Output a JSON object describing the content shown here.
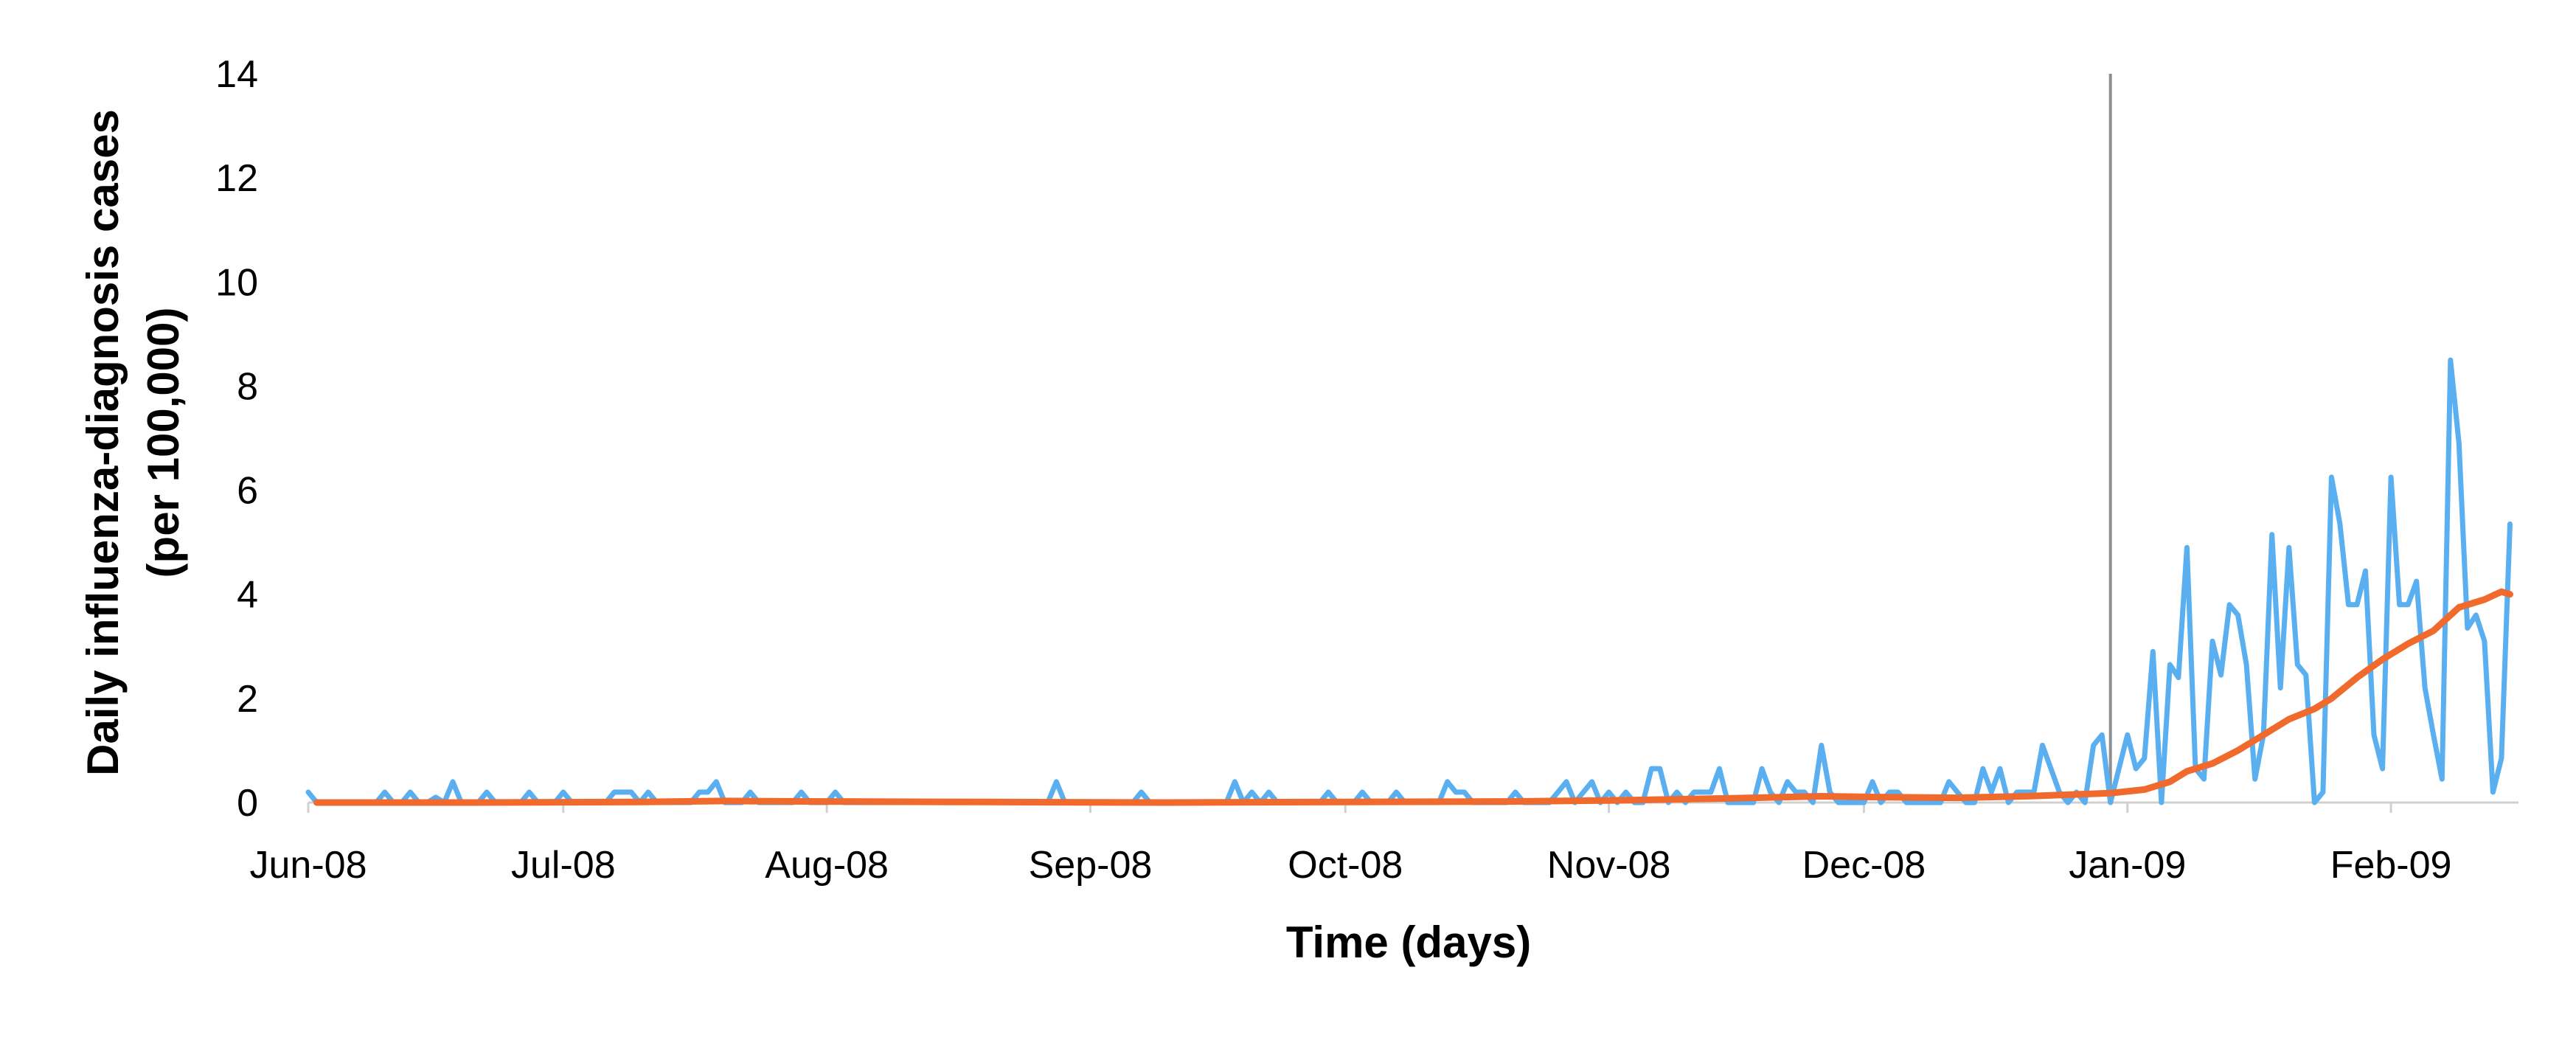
{
  "chart_data": {
    "type": "line",
    "xlabel": "Time (days)",
    "ylabel": [
      "Daily influenza-diagnosis cases",
      "(per 100,000)"
    ],
    "ylim": [
      0,
      14
    ],
    "yticks": [
      0,
      2,
      4,
      6,
      8,
      10,
      12,
      14
    ],
    "x_tick_labels": [
      {
        "date": "2008-06-01",
        "label": "Jun-08"
      },
      {
        "date": "2008-07-01",
        "label": "Jul-08"
      },
      {
        "date": "2008-08-01",
        "label": "Aug-08"
      },
      {
        "date": "2008-09-01",
        "label": "Sep-08"
      },
      {
        "date": "2008-10-01",
        "label": "Oct-08"
      },
      {
        "date": "2008-11-01",
        "label": "Nov-08"
      },
      {
        "date": "2008-12-01",
        "label": "Dec-08"
      },
      {
        "date": "2009-01-01",
        "label": "Jan-09"
      },
      {
        "date": "2009-02-01",
        "label": "Feb-09"
      }
    ],
    "xlim": [
      "2008-06-01",
      "2009-02-16"
    ],
    "grid": false,
    "legend": "none",
    "vertical_marker": {
      "date": "2008-12-30",
      "color": "#8a8f8f"
    },
    "series": [
      {
        "color": "#5aaff0",
        "points": [
          [
            "2008-06-01",
            0.2
          ],
          [
            "2008-06-02",
            0
          ],
          [
            "2008-06-09",
            0
          ],
          [
            "2008-06-10",
            0.2
          ],
          [
            "2008-06-11",
            0
          ],
          [
            "2008-06-12",
            0
          ],
          [
            "2008-06-13",
            0.2
          ],
          [
            "2008-06-14",
            0
          ],
          [
            "2008-06-15",
            0
          ],
          [
            "2008-06-16",
            0.1
          ],
          [
            "2008-06-17",
            0
          ],
          [
            "2008-06-18",
            0.4
          ],
          [
            "2008-06-19",
            0
          ],
          [
            "2008-06-21",
            0
          ],
          [
            "2008-06-22",
            0.2
          ],
          [
            "2008-06-23",
            0
          ],
          [
            "2008-06-26",
            0
          ],
          [
            "2008-06-27",
            0.2
          ],
          [
            "2008-06-28",
            0
          ],
          [
            "2008-06-30",
            0
          ],
          [
            "2008-07-01",
            0.2
          ],
          [
            "2008-07-02",
            0
          ],
          [
            "2008-07-06",
            0
          ],
          [
            "2008-07-07",
            0.2
          ],
          [
            "2008-07-09",
            0.2
          ],
          [
            "2008-07-10",
            0
          ],
          [
            "2008-07-11",
            0.2
          ],
          [
            "2008-07-12",
            0
          ],
          [
            "2008-07-16",
            0
          ],
          [
            "2008-07-17",
            0.2
          ],
          [
            "2008-07-18",
            0.2
          ],
          [
            "2008-07-19",
            0.4
          ],
          [
            "2008-07-20",
            0
          ],
          [
            "2008-07-22",
            0
          ],
          [
            "2008-07-23",
            0.2
          ],
          [
            "2008-07-24",
            0
          ],
          [
            "2008-07-28",
            0
          ],
          [
            "2008-07-29",
            0.2
          ],
          [
            "2008-07-30",
            0
          ],
          [
            "2008-08-01",
            0
          ],
          [
            "2008-08-02",
            0.2
          ],
          [
            "2008-08-03",
            0
          ],
          [
            "2008-08-27",
            0
          ],
          [
            "2008-08-28",
            0.4
          ],
          [
            "2008-08-29",
            0
          ],
          [
            "2008-09-06",
            0
          ],
          [
            "2008-09-07",
            0.2
          ],
          [
            "2008-09-08",
            0
          ],
          [
            "2008-09-17",
            0
          ],
          [
            "2008-09-18",
            0.4
          ],
          [
            "2008-09-19",
            0
          ],
          [
            "2008-09-20",
            0.2
          ],
          [
            "2008-09-21",
            0
          ],
          [
            "2008-09-22",
            0.2
          ],
          [
            "2008-09-23",
            0
          ],
          [
            "2008-09-28",
            0
          ],
          [
            "2008-09-29",
            0.2
          ],
          [
            "2008-09-30",
            0
          ],
          [
            "2008-10-02",
            0
          ],
          [
            "2008-10-03",
            0.2
          ],
          [
            "2008-10-04",
            0
          ],
          [
            "2008-10-06",
            0
          ],
          [
            "2008-10-07",
            0.2
          ],
          [
            "2008-10-08",
            0
          ],
          [
            "2008-10-12",
            0
          ],
          [
            "2008-10-13",
            0.4
          ],
          [
            "2008-10-14",
            0.2
          ],
          [
            "2008-10-15",
            0.2
          ],
          [
            "2008-10-16",
            0
          ],
          [
            "2008-10-20",
            0
          ],
          [
            "2008-10-21",
            0.2
          ],
          [
            "2008-10-22",
            0
          ],
          [
            "2008-10-25",
            0
          ],
          [
            "2008-10-26",
            0.2
          ],
          [
            "2008-10-27",
            0.4
          ],
          [
            "2008-10-28",
            0
          ],
          [
            "2008-10-29",
            0.2
          ],
          [
            "2008-10-30",
            0.4
          ],
          [
            "2008-10-31",
            0
          ],
          [
            "2008-11-01",
            0.2
          ],
          [
            "2008-11-02",
            0
          ],
          [
            "2008-11-03",
            0.2
          ],
          [
            "2008-11-04",
            0
          ],
          [
            "2008-11-05",
            0
          ],
          [
            "2008-11-06",
            0.65
          ],
          [
            "2008-11-07",
            0.65
          ],
          [
            "2008-11-08",
            0
          ],
          [
            "2008-11-09",
            0.2
          ],
          [
            "2008-11-10",
            0
          ],
          [
            "2008-11-11",
            0.2
          ],
          [
            "2008-11-12",
            0.2
          ],
          [
            "2008-11-13",
            0.2
          ],
          [
            "2008-11-14",
            0.65
          ],
          [
            "2008-11-15",
            0
          ],
          [
            "2008-11-18",
            0
          ],
          [
            "2008-11-19",
            0.65
          ],
          [
            "2008-11-20",
            0.2
          ],
          [
            "2008-11-21",
            0
          ],
          [
            "2008-11-22",
            0.4
          ],
          [
            "2008-11-23",
            0.2
          ],
          [
            "2008-11-24",
            0.2
          ],
          [
            "2008-11-25",
            0
          ],
          [
            "2008-11-26",
            1.1
          ],
          [
            "2008-11-27",
            0.2
          ],
          [
            "2008-11-28",
            0
          ],
          [
            "2008-12-01",
            0
          ],
          [
            "2008-12-02",
            0.4
          ],
          [
            "2008-12-03",
            0
          ],
          [
            "2008-12-04",
            0.2
          ],
          [
            "2008-12-05",
            0.2
          ],
          [
            "2008-12-06",
            0
          ],
          [
            "2008-12-10",
            0
          ],
          [
            "2008-12-11",
            0.4
          ],
          [
            "2008-12-12",
            0.2
          ],
          [
            "2008-12-13",
            0
          ],
          [
            "2008-12-14",
            0
          ],
          [
            "2008-12-15",
            0.65
          ],
          [
            "2008-12-16",
            0.2
          ],
          [
            "2008-12-17",
            0.65
          ],
          [
            "2008-12-18",
            0
          ],
          [
            "2008-12-19",
            0.2
          ],
          [
            "2008-12-20",
            0.2
          ],
          [
            "2008-12-21",
            0.2
          ],
          [
            "2008-12-22",
            1.1
          ],
          [
            "2008-12-23",
            0.65
          ],
          [
            "2008-12-24",
            0.2
          ],
          [
            "2008-12-25",
            0
          ],
          [
            "2008-12-26",
            0.2
          ],
          [
            "2008-12-27",
            0
          ],
          [
            "2008-12-28",
            1.1
          ],
          [
            "2008-12-29",
            1.3
          ],
          [
            "2008-12-30",
            0
          ],
          [
            "2008-12-31",
            0.65
          ],
          [
            "2009-01-01",
            1.3
          ],
          [
            "2009-01-02",
            0.65
          ],
          [
            "2009-01-03",
            0.85
          ],
          [
            "2009-01-04",
            2.9
          ],
          [
            "2009-01-05",
            0
          ],
          [
            "2009-01-06",
            2.65
          ],
          [
            "2009-01-07",
            2.4
          ],
          [
            "2009-01-08",
            4.9
          ],
          [
            "2009-01-09",
            0.65
          ],
          [
            "2009-01-10",
            0.45
          ],
          [
            "2009-01-11",
            3.1
          ],
          [
            "2009-01-12",
            2.45
          ],
          [
            "2009-01-13",
            3.8
          ],
          [
            "2009-01-14",
            3.6
          ],
          [
            "2009-01-15",
            2.65
          ],
          [
            "2009-01-16",
            0.45
          ],
          [
            "2009-01-17",
            1.3
          ],
          [
            "2009-01-18",
            5.15
          ],
          [
            "2009-01-19",
            2.2
          ],
          [
            "2009-01-20",
            4.9
          ],
          [
            "2009-01-21",
            2.65
          ],
          [
            "2009-01-22",
            2.45
          ],
          [
            "2009-01-23",
            0
          ],
          [
            "2009-01-24",
            0.2
          ],
          [
            "2009-01-25",
            6.25
          ],
          [
            "2009-01-26",
            5.35
          ],
          [
            "2009-01-27",
            3.8
          ],
          [
            "2009-01-28",
            3.8
          ],
          [
            "2009-01-29",
            4.45
          ],
          [
            "2009-01-30",
            1.3
          ],
          [
            "2009-01-31",
            0.65
          ],
          [
            "2009-02-01",
            6.25
          ],
          [
            "2009-02-02",
            3.8
          ],
          [
            "2009-02-03",
            3.8
          ],
          [
            "2009-02-04",
            4.25
          ],
          [
            "2009-02-05",
            2.2
          ],
          [
            "2009-02-06",
            1.3
          ],
          [
            "2009-02-07",
            0.45
          ],
          [
            "2009-02-08",
            8.5
          ],
          [
            "2009-02-09",
            6.9
          ],
          [
            "2009-02-10",
            3.35
          ],
          [
            "2009-02-11",
            3.6
          ],
          [
            "2009-02-12",
            3.1
          ],
          [
            "2009-02-13",
            0.2
          ],
          [
            "2009-02-14",
            0.85
          ],
          [
            "2009-02-15",
            5.35
          ]
        ]
      },
      {
        "color": "#ef6a2c",
        "points": [
          [
            "2008-06-02",
            0
          ],
          [
            "2008-06-20",
            0
          ],
          [
            "2008-07-10",
            0.01
          ],
          [
            "2008-07-20",
            0.03
          ],
          [
            "2008-08-01",
            0.02
          ],
          [
            "2008-08-20",
            0.01
          ],
          [
            "2008-09-10",
            0
          ],
          [
            "2008-10-01",
            0.01
          ],
          [
            "2008-10-20",
            0.02
          ],
          [
            "2008-11-01",
            0.04
          ],
          [
            "2008-11-15",
            0.08
          ],
          [
            "2008-11-26",
            0.12
          ],
          [
            "2008-12-05",
            0.1
          ],
          [
            "2008-12-12",
            0.09
          ],
          [
            "2008-12-20",
            0.12
          ],
          [
            "2008-12-25",
            0.15
          ],
          [
            "2008-12-30",
            0.18
          ],
          [
            "2009-01-03",
            0.25
          ],
          [
            "2009-01-06",
            0.4
          ],
          [
            "2009-01-08",
            0.6
          ],
          [
            "2009-01-11",
            0.75
          ],
          [
            "2009-01-14",
            1.0
          ],
          [
            "2009-01-17",
            1.3
          ],
          [
            "2009-01-20",
            1.6
          ],
          [
            "2009-01-23",
            1.8
          ],
          [
            "2009-01-25",
            2.0
          ],
          [
            "2009-01-28",
            2.4
          ],
          [
            "2009-01-31",
            2.75
          ],
          [
            "2009-02-03",
            3.05
          ],
          [
            "2009-02-06",
            3.3
          ],
          [
            "2009-02-09",
            3.75
          ],
          [
            "2009-02-12",
            3.9
          ],
          [
            "2009-02-14",
            4.05
          ],
          [
            "2009-02-15",
            4.0
          ]
        ]
      }
    ]
  }
}
